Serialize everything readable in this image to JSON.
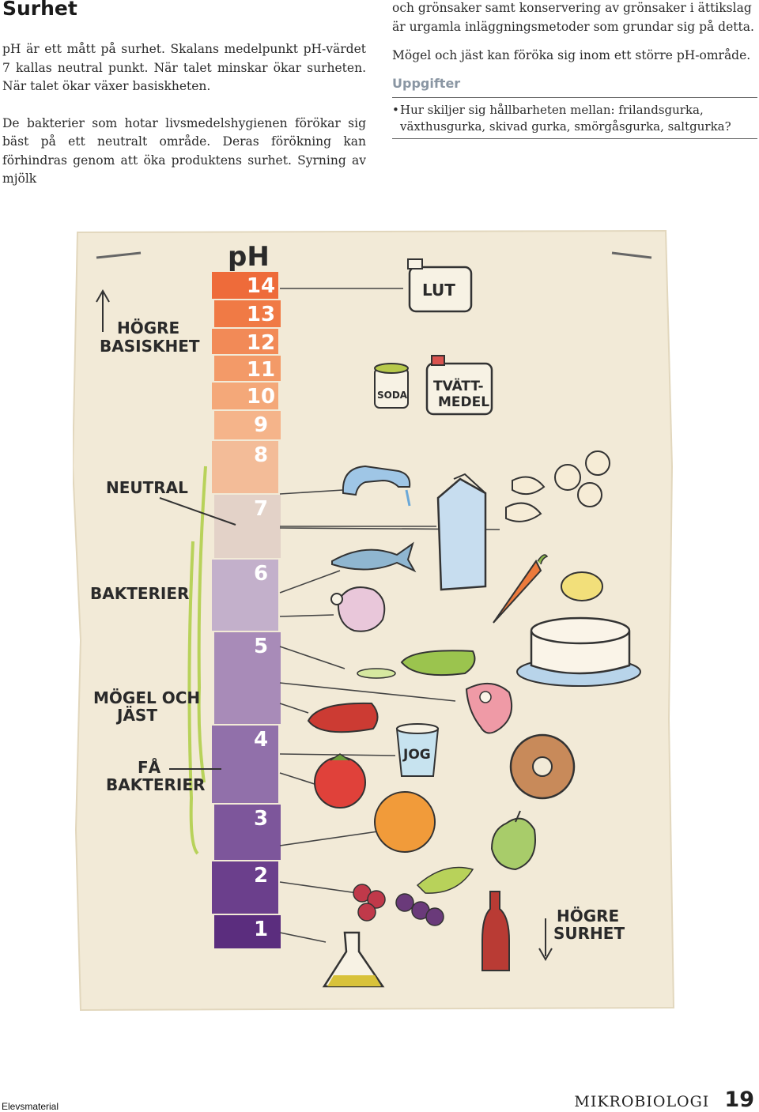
{
  "page": {
    "title": "Surhet",
    "left_paragraphs": [
      "pH är ett mått på surhet. Skalans medelpunkt pH-värdet 7 kallas neutral punkt. När talet minskar ökar surheten. När talet ökar växer basiskheten.",
      "De bakterier som hotar livsmedelshygienen förökar sig bäst på ett neutralt område. Deras förökning kan förhindras genom att öka produktens surhet. Syrning av mjölk"
    ],
    "right_paragraphs": [
      "och grönsaker samt konservering av grönsaker i ättikslag är urgamla inläggningsmetoder som grundar sig på detta.",
      "Mögel och jäst kan föröka sig inom ett större pH-område."
    ],
    "tasks_heading": "Uppgifter",
    "tasks": [
      "Hur skiljer sig hållbarheten mellan: frilandsgurka, växthusgurka, skivad gurka, smörgåsgurka, saltgurka?"
    ]
  },
  "illustration": {
    "scale_title": "pH",
    "ph_levels": [
      {
        "label": "14",
        "color": "#ee6b3a"
      },
      {
        "label": "13",
        "color": "#f07a45"
      },
      {
        "label": "12",
        "color": "#f28a57"
      },
      {
        "label": "11",
        "color": "#f39a68"
      },
      {
        "label": "10",
        "color": "#f4a879"
      },
      {
        "label": "9",
        "color": "#f5b48a"
      },
      {
        "label": "8",
        "color": "#f3bc98"
      },
      {
        "label": "7",
        "color": "#e3d2c8"
      },
      {
        "label": "6",
        "color": "#c3b0cb"
      },
      {
        "label": "5",
        "color": "#a88bb8"
      },
      {
        "label": "4",
        "color": "#9170aa"
      },
      {
        "label": "3",
        "color": "#7d569b"
      },
      {
        "label": "2",
        "color": "#6b3f8c"
      },
      {
        "label": "1",
        "color": "#5b2d7e"
      }
    ],
    "labels": {
      "hogre_basiskhet": [
        "HÖGRE",
        "BASISKHET"
      ],
      "neutral": "NEUTRAL",
      "bakterier": "BAKTERIER",
      "mogel_och_jast": [
        "MÖGEL OCH",
        "JÄST"
      ],
      "fa_bakterier": [
        "FÅ",
        "BAKTERIER"
      ],
      "hogre_surhet": [
        "HÖGRE",
        "SURHET"
      ],
      "lut": "LUT",
      "soda": "SODA",
      "tvattmedel": [
        "TVÄTT-",
        "MEDEL"
      ],
      "jog": "JOG"
    },
    "colors": {
      "paper": "#f2ead7",
      "green_bracket": "#b8d25a"
    },
    "icons": [
      "lut-canister-icon",
      "soda-can-icon",
      "detergent-canister-icon",
      "faucet-icon",
      "milk-carton-icon",
      "pasta-icon",
      "fish-icon",
      "carrot-icon",
      "potato-icon",
      "chicken-icon",
      "cake-icon",
      "cucumber-icon",
      "meat-icon",
      "sausage-icon",
      "yoghurt-cup-icon",
      "bread-ring-icon",
      "tomato-icon",
      "orange-icon",
      "apple-icon",
      "berries-icon",
      "grapes-icon",
      "flask-icon",
      "cola-bottle-icon"
    ]
  },
  "footer": {
    "left": "Elevsmaterial",
    "subject": "MIKROBIOLOGI",
    "page_number": "19"
  }
}
